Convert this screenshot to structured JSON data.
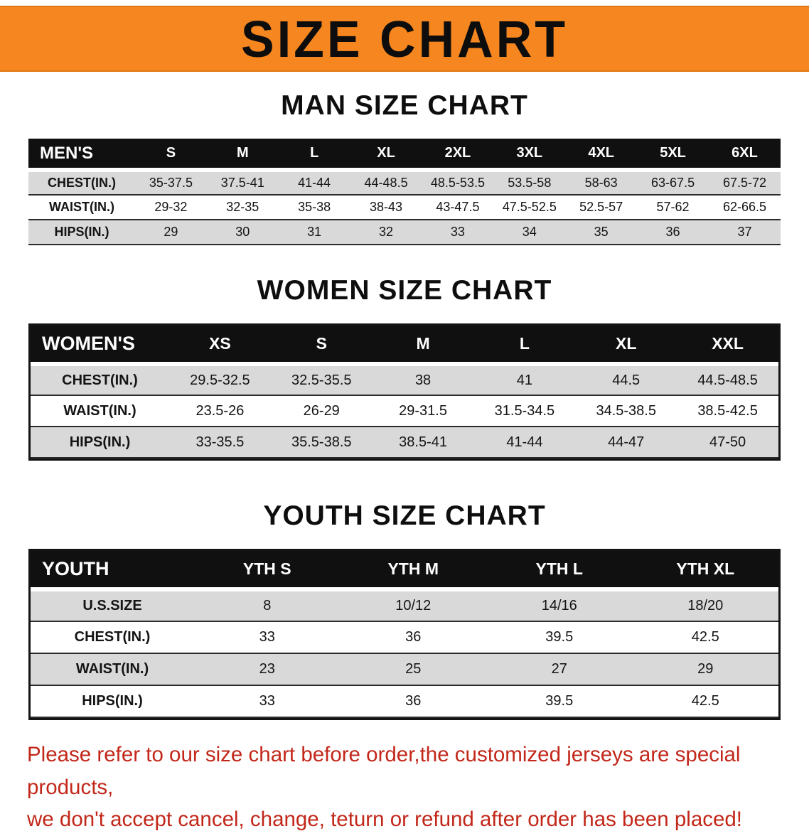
{
  "banner": {
    "title": "SIZE CHART",
    "bg_color": "#F6861F",
    "text_color": "#0d0d0d"
  },
  "colors": {
    "table_header_bg": "#101010",
    "table_header_text": "#ffffff",
    "shaded_row_bg": "#d9d9d9",
    "footer_text": "#c2271a"
  },
  "sections": [
    {
      "heading": "MAN SIZE CHART",
      "table": {
        "header": [
          "MEN'S",
          "S",
          "M",
          "L",
          "XL",
          "2XL",
          "3XL",
          "4XL",
          "5XL",
          "6XL"
        ],
        "rows": [
          [
            "CHEST(IN.)",
            "35-37.5",
            "37.5-41",
            "41-44",
            "44-48.5",
            "48.5-53.5",
            "53.5-58",
            "58-63",
            "63-67.5",
            "67.5-72"
          ],
          [
            "WAIST(IN.)",
            "29-32",
            "32-35",
            "35-38",
            "38-43",
            "43-47.5",
            "47.5-52.5",
            "52.5-57",
            "57-62",
            "62-66.5"
          ],
          [
            "HIPS(IN.)",
            "29",
            "30",
            "31",
            "32",
            "33",
            "34",
            "35",
            "36",
            "37"
          ]
        ]
      }
    },
    {
      "heading": "WOMEN SIZE CHART",
      "table": {
        "header": [
          "WOMEN'S",
          "XS",
          "S",
          "M",
          "L",
          "XL",
          "XXL"
        ],
        "rows": [
          [
            "CHEST(IN.)",
            "29.5-32.5",
            "32.5-35.5",
            "38",
            "41",
            "44.5",
            "44.5-48.5"
          ],
          [
            "WAIST(IN.)",
            "23.5-26",
            "26-29",
            "29-31.5",
            "31.5-34.5",
            "34.5-38.5",
            "38.5-42.5"
          ],
          [
            "HIPS(IN.)",
            "33-35.5",
            "35.5-38.5",
            "38.5-41",
            "41-44",
            "44-47",
            "47-50"
          ]
        ]
      }
    },
    {
      "heading": "YOUTH SIZE CHART",
      "table": {
        "header": [
          "YOUTH",
          "YTH S",
          "YTH M",
          "YTH L",
          "YTH XL"
        ],
        "rows": [
          [
            "U.S.SIZE",
            "8",
            "10/12",
            "14/16",
            "18/20"
          ],
          [
            "CHEST(IN.)",
            "33",
            "36",
            "39.5",
            "42.5"
          ],
          [
            "WAIST(IN.)",
            "23",
            "25",
            "27",
            "29"
          ],
          [
            "HIPS(IN.)",
            "33",
            "36",
            "39.5",
            "42.5"
          ]
        ]
      }
    }
  ],
  "footer": {
    "line1": "Please refer to our size chart before order,the customized jerseys are special products,",
    "line2": "we don't accept cancel, change, teturn or refund after order has been placed!"
  }
}
